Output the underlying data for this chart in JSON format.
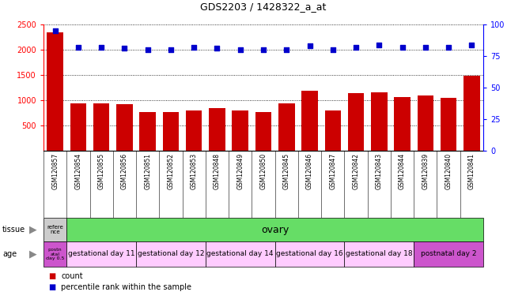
{
  "title": "GDS2203 / 1428322_a_at",
  "samples": [
    "GSM120857",
    "GSM120854",
    "GSM120855",
    "GSM120856",
    "GSM120851",
    "GSM120852",
    "GSM120853",
    "GSM120848",
    "GSM120849",
    "GSM120850",
    "GSM120845",
    "GSM120846",
    "GSM120847",
    "GSM120842",
    "GSM120843",
    "GSM120844",
    "GSM120839",
    "GSM120840",
    "GSM120841"
  ],
  "counts": [
    2350,
    940,
    940,
    920,
    760,
    760,
    800,
    840,
    800,
    760,
    940,
    1190,
    800,
    1140,
    1160,
    1070,
    1100,
    1040,
    1490
  ],
  "percentiles": [
    95,
    82,
    82,
    81,
    80,
    80,
    82,
    81,
    80,
    80,
    80,
    83,
    80,
    82,
    84,
    82,
    82,
    82,
    84
  ],
  "ylim_left": [
    0,
    2500
  ],
  "ylim_right": [
    0,
    100
  ],
  "yticks_left": [
    500,
    1000,
    1500,
    2000,
    2500
  ],
  "yticks_right": [
    0,
    25,
    50,
    75,
    100
  ],
  "bar_color": "#cc0000",
  "dot_color": "#0000cc",
  "tissue_first_label": "refere\nnce",
  "tissue_first_color": "#cccccc",
  "tissue_second_label": "ovary",
  "tissue_second_color": "#66dd66",
  "age_rows": [
    {
      "label": "postn\natal\nday 0.5",
      "color": "#cc55cc",
      "span": 1
    },
    {
      "label": "gestational day 11",
      "color": "#ffccff",
      "span": 3
    },
    {
      "label": "gestational day 12",
      "color": "#ffccff",
      "span": 3
    },
    {
      "label": "gestational day 14",
      "color": "#ffccff",
      "span": 3
    },
    {
      "label": "gestational day 16",
      "color": "#ffccff",
      "span": 3
    },
    {
      "label": "gestational day 18",
      "color": "#ffccff",
      "span": 3
    },
    {
      "label": "postnatal day 2",
      "color": "#cc55cc",
      "span": 3
    }
  ],
  "legend_count_color": "#cc0000",
  "legend_dot_color": "#0000cc",
  "tick_label_bg": "#dddddd"
}
